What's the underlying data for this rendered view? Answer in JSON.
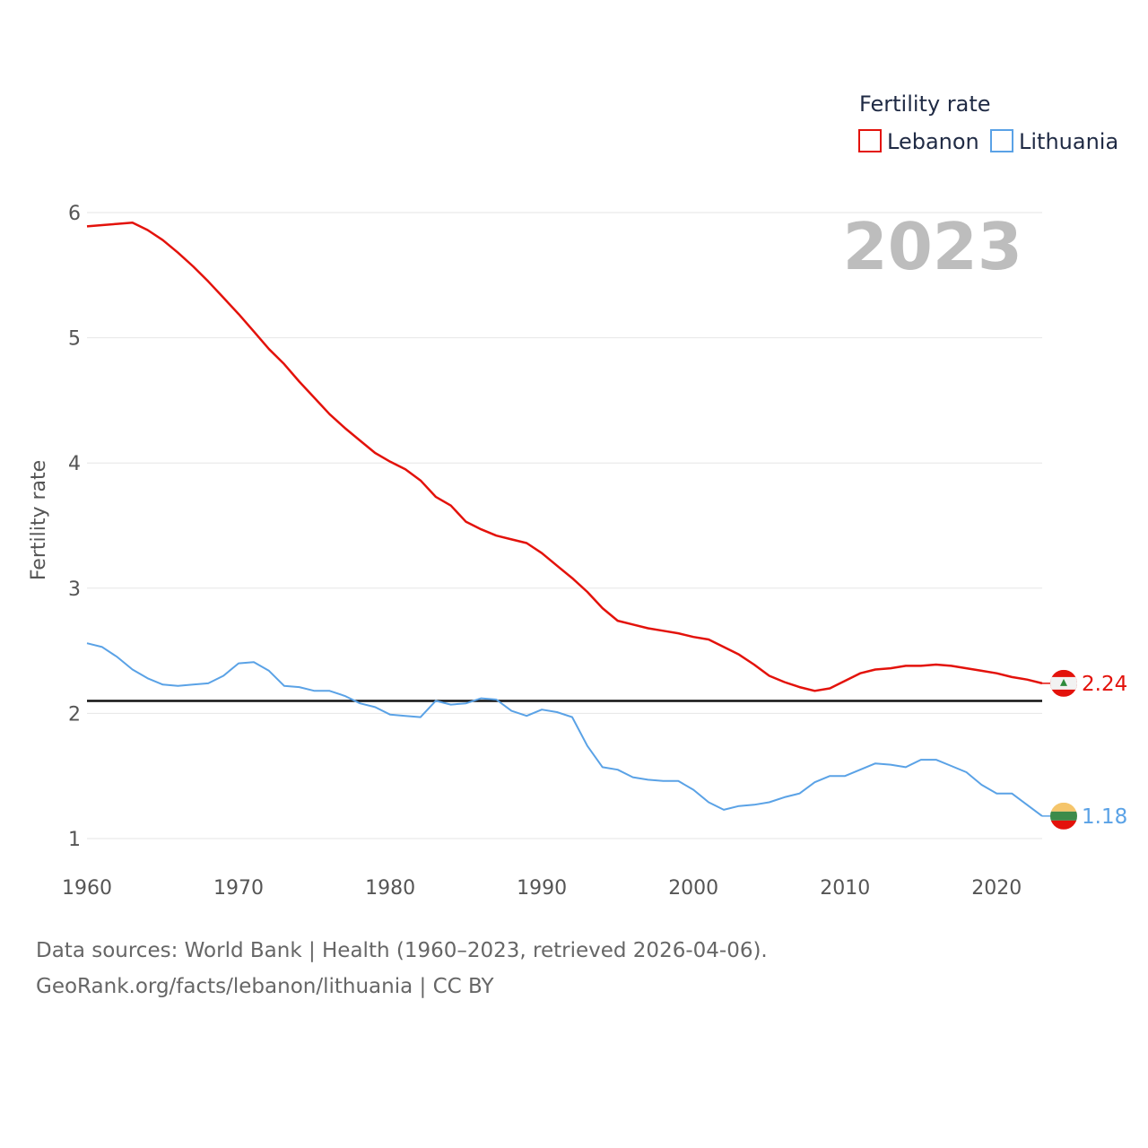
{
  "chart_data": {
    "type": "line",
    "title": "",
    "xlabel": "",
    "ylabel": "Fertility rate",
    "xlim": [
      1960,
      2023
    ],
    "ylim": [
      0.9,
      6.1
    ],
    "xticks": [
      1960,
      1970,
      1980,
      1990,
      2000,
      2010,
      2020
    ],
    "yticks": [
      1,
      2,
      3,
      4,
      5,
      6
    ],
    "year_display": "2023",
    "legend_title": "Fertility rate",
    "reference_line": 2.1,
    "x": [
      1960,
      1961,
      1962,
      1963,
      1964,
      1965,
      1966,
      1967,
      1968,
      1969,
      1970,
      1971,
      1972,
      1973,
      1974,
      1975,
      1976,
      1977,
      1978,
      1979,
      1980,
      1981,
      1982,
      1983,
      1984,
      1985,
      1986,
      1987,
      1988,
      1989,
      1990,
      1991,
      1992,
      1993,
      1994,
      1995,
      1996,
      1997,
      1998,
      1999,
      2000,
      2001,
      2002,
      2003,
      2004,
      2005,
      2006,
      2007,
      2008,
      2009,
      2010,
      2011,
      2012,
      2013,
      2014,
      2015,
      2016,
      2017,
      2018,
      2019,
      2020,
      2021,
      2022,
      2023
    ],
    "series": [
      {
        "name": "Lebanon",
        "color": "#e3120b",
        "end_label": "2.24",
        "values": [
          5.89,
          5.9,
          5.91,
          5.92,
          5.86,
          5.78,
          5.68,
          5.57,
          5.45,
          5.32,
          5.19,
          5.05,
          4.91,
          4.79,
          4.65,
          4.52,
          4.39,
          4.28,
          4.18,
          4.08,
          4.01,
          3.95,
          3.86,
          3.73,
          3.66,
          3.53,
          3.47,
          3.42,
          3.39,
          3.36,
          3.28,
          3.18,
          3.08,
          2.97,
          2.84,
          2.74,
          2.71,
          2.68,
          2.66,
          2.64,
          2.61,
          2.59,
          2.53,
          2.47,
          2.39,
          2.3,
          2.25,
          2.21,
          2.18,
          2.2,
          2.26,
          2.32,
          2.35,
          2.36,
          2.38,
          2.38,
          2.39,
          2.38,
          2.36,
          2.34,
          2.32,
          2.29,
          2.27,
          2.24
        ]
      },
      {
        "name": "Lithuania",
        "color": "#5aa2e6",
        "end_label": "1.18",
        "values": [
          2.56,
          2.53,
          2.45,
          2.35,
          2.28,
          2.23,
          2.22,
          2.23,
          2.24,
          2.3,
          2.4,
          2.41,
          2.34,
          2.22,
          2.21,
          2.18,
          2.18,
          2.14,
          2.08,
          2.05,
          1.99,
          1.98,
          1.97,
          2.1,
          2.07,
          2.08,
          2.12,
          2.11,
          2.02,
          1.98,
          2.03,
          2.01,
          1.97,
          1.74,
          1.57,
          1.55,
          1.49,
          1.47,
          1.46,
          1.46,
          1.39,
          1.29,
          1.23,
          1.26,
          1.27,
          1.29,
          1.33,
          1.36,
          1.45,
          1.5,
          1.5,
          1.55,
          1.6,
          1.59,
          1.57,
          1.63,
          1.63,
          1.58,
          1.53,
          1.43,
          1.36,
          1.36,
          1.27,
          1.18
        ]
      }
    ]
  },
  "footer": {
    "line1": "Data sources: World Bank | Health (1960–2023, retrieved 2026-04-06).",
    "line2": "GeoRank.org/facts/lebanon/lithuania | CC BY"
  },
  "icons": {
    "lebanon": "lebanon-flag-icon",
    "lithuania": "lithuania-flag-icon"
  }
}
